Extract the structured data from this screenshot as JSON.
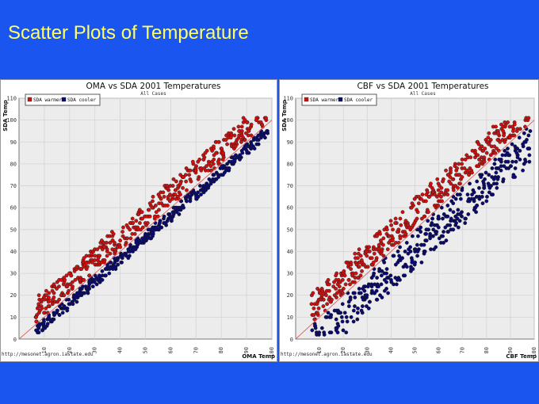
{
  "slide": {
    "title": "Scatter Plots of Temperature",
    "background_color": "#1a55f0",
    "title_color": "#ffff66"
  },
  "chart_data": [
    {
      "type": "scatter",
      "title": "OMA vs SDA 2001 Temperatures",
      "subtitle": "All Cases",
      "xlabel": "OMA Temp",
      "ylabel": "SDA Temp",
      "source": "http://mesonet.agron.iastate.edu",
      "xlim": [
        0,
        100
      ],
      "ylim": [
        0,
        110
      ],
      "x_ticks": [
        "10",
        "20",
        "30",
        "40",
        "50",
        "60",
        "70",
        "80",
        "90",
        "100"
      ],
      "y_ticks": [
        "10",
        "20",
        "30",
        "40",
        "50",
        "60",
        "70",
        "80",
        "90",
        "100",
        "110"
      ],
      "reference_line": "y = x",
      "grid": true,
      "legend": "top-left",
      "series": [
        {
          "name": "SDA warmer",
          "color": "#cc1111",
          "offset_min": 1,
          "offset_max": 12
        },
        {
          "name": "SDA cooler",
          "color": "#0a0a6e",
          "offset_min": -6,
          "offset_max": -1
        }
      ]
    },
    {
      "type": "scatter",
      "title": "CBF vs SDA 2001 Temperatures",
      "subtitle": "All Cases",
      "xlabel": "CBF Temp",
      "ylabel": "SDA Temp",
      "source": "http://mesonet.agron.iastate.edu",
      "xlim": [
        0,
        100
      ],
      "ylim": [
        0,
        110
      ],
      "x_ticks": [
        "10",
        "20",
        "30",
        "40",
        "50",
        "60",
        "70",
        "80",
        "90",
        "100"
      ],
      "y_ticks": [
        "10",
        "20",
        "30",
        "40",
        "50",
        "60",
        "70",
        "80",
        "90",
        "100",
        "110"
      ],
      "reference_line": "y = x",
      "grid": true,
      "legend": "top-left",
      "series": [
        {
          "name": "SDA warmer",
          "color": "#cc1111",
          "offset_min": 1,
          "offset_max": 14
        },
        {
          "name": "SDA cooler",
          "color": "#0a0a6e",
          "offset_min": -18,
          "offset_max": -1
        }
      ]
    }
  ]
}
